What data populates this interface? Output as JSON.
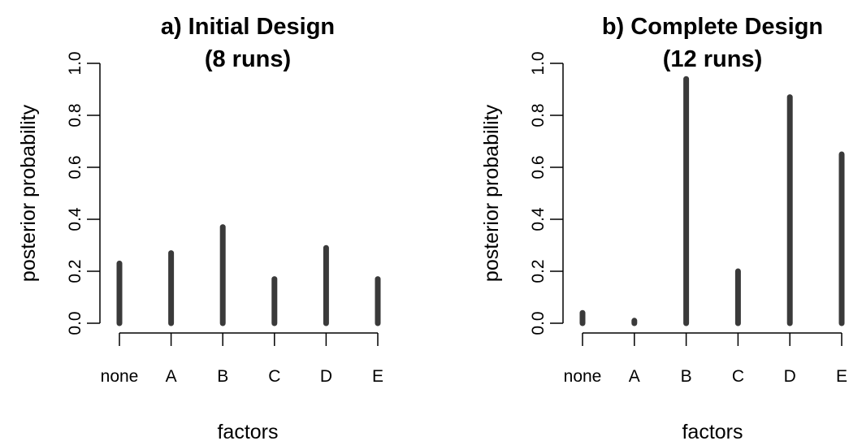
{
  "chart_data": [
    {
      "type": "bar",
      "title": "a) Initial Design",
      "subtitle": "(8 runs)",
      "xlabel": "factors",
      "ylabel": "posterior probability",
      "categories": [
        "none",
        "A",
        "B",
        "C",
        "D",
        "E"
      ],
      "values": [
        0.23,
        0.27,
        0.37,
        0.17,
        0.29,
        0.17
      ],
      "ylim": [
        0,
        1.0
      ],
      "yticks": [
        "0.0",
        "0.2",
        "0.4",
        "0.6",
        "0.8",
        "1.0"
      ],
      "grid": false,
      "bar_color": "#3a3a3a"
    },
    {
      "type": "bar",
      "title": "b) Complete Design",
      "subtitle": "(12 runs)",
      "xlabel": "factors",
      "ylabel": "posterior probability",
      "categories": [
        "none",
        "A",
        "B",
        "C",
        "D",
        "E"
      ],
      "values": [
        0.04,
        0.01,
        0.94,
        0.2,
        0.87,
        0.65
      ],
      "ylim": [
        0,
        1.0
      ],
      "yticks": [
        "0.0",
        "0.2",
        "0.4",
        "0.6",
        "0.8",
        "1.0"
      ],
      "grid": false,
      "bar_color": "#3a3a3a"
    }
  ]
}
